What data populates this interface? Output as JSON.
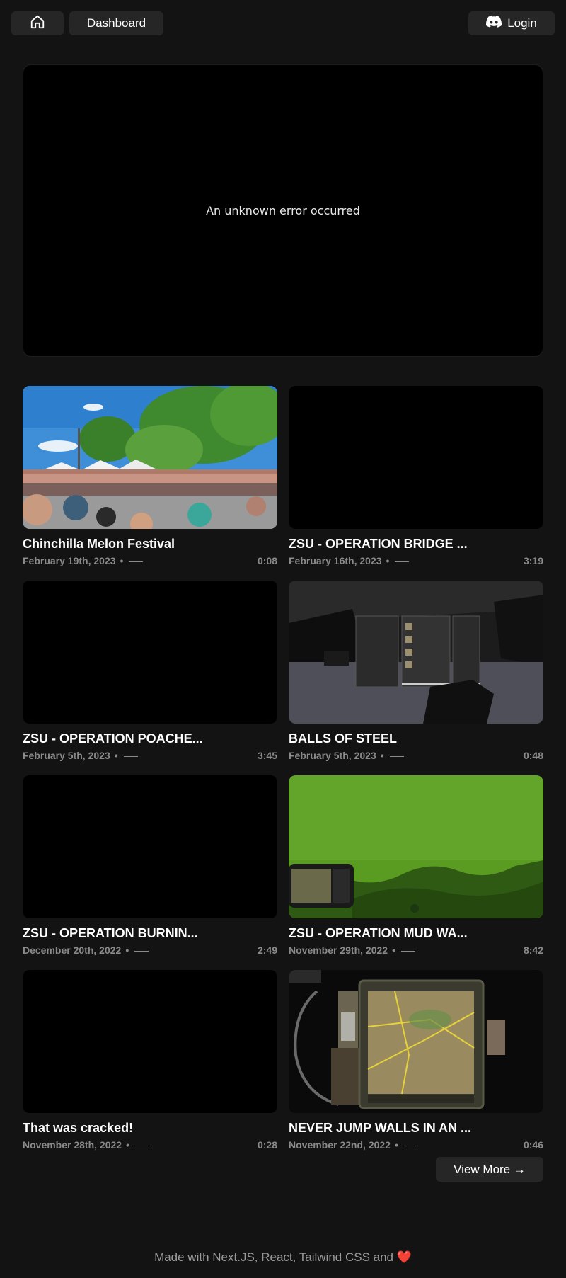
{
  "nav": {
    "home_icon": "home-icon",
    "dashboard_label": "Dashboard",
    "login_label": "Login",
    "login_icon": "discord-icon"
  },
  "player": {
    "error_text": "An unknown error occurred"
  },
  "videos": [
    {
      "title": "Chinchilla Melon Festival",
      "date": "February 19th, 2023",
      "duration": "0:08",
      "thumbnail": "festival-crowd"
    },
    {
      "title": "ZSU - OPERATION BRIDGE ...",
      "date": "February 16th, 2023",
      "duration": "3:19",
      "thumbnail": "black"
    },
    {
      "title": "ZSU - OPERATION POACHE...",
      "date": "February 5th, 2023",
      "duration": "3:45",
      "thumbnail": "black"
    },
    {
      "title": "BALLS OF STEEL",
      "date": "February 5th, 2023",
      "duration": "0:48",
      "thumbnail": "game-inventory"
    },
    {
      "title": "ZSU - OPERATION BURNIN...",
      "date": "December 20th, 2022",
      "duration": "2:49",
      "thumbnail": "black"
    },
    {
      "title": "ZSU - OPERATION MUD WA...",
      "date": "November 29th, 2022",
      "duration": "8:42",
      "thumbnail": "green-night-vision"
    },
    {
      "title": "That was cracked!",
      "date": "November 28th, 2022",
      "duration": "0:28",
      "thumbnail": "black"
    },
    {
      "title": "NEVER JUMP WALLS IN AN ...",
      "date": "November 22nd, 2022",
      "duration": "0:46",
      "thumbnail": "map-tablet"
    }
  ],
  "view_more_label": "View More →",
  "footer": {
    "text": "Made with Next.JS, React, Tailwind CSS and",
    "heart": "❤️"
  },
  "colors": {
    "background": "#131313",
    "button": "#262626",
    "muted_text": "#8a8a8a",
    "heart": "#e03b3b"
  }
}
